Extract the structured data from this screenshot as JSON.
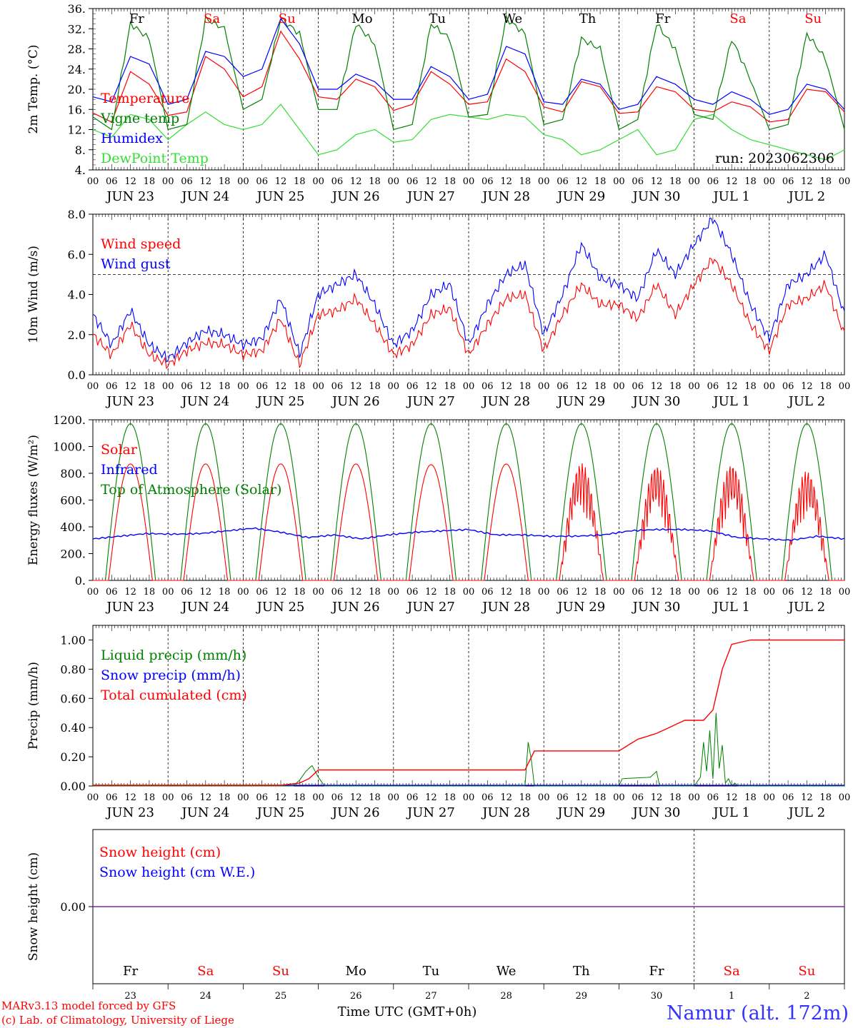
{
  "chart_data": [
    {
      "type": "line",
      "ylabel": "2m Temp. (°C)",
      "ylim": [
        4,
        36
      ],
      "yticks": [
        "4.",
        "8.",
        "12.",
        "16.",
        "20.",
        "24.",
        "28.",
        "32.",
        "36."
      ],
      "run_label": "run: 2023062306",
      "top_days": [
        "Fr",
        "Sa",
        "Su",
        "Mo",
        "Tu",
        "We",
        "Th",
        "Fr",
        "Sa",
        "Su"
      ],
      "legend": [
        {
          "name": "Temperature",
          "color": "#ff0000"
        },
        {
          "name": "Vigne temp",
          "color": "#008000"
        },
        {
          "name": "Humidex",
          "color": "#0000ff"
        },
        {
          "name": "DewPoint Temp",
          "color": "#33dd33"
        }
      ],
      "x_hours": [
        0,
        6,
        12,
        18,
        24,
        30,
        36,
        42,
        48,
        54,
        60,
        66,
        72,
        78,
        84,
        90,
        96,
        102,
        108,
        114,
        120,
        126,
        132,
        138,
        144,
        150,
        156,
        162,
        168,
        174,
        180,
        186,
        192,
        198,
        204,
        210,
        216,
        222,
        228,
        234,
        240
      ],
      "series": [
        {
          "name": "Temperature",
          "color": "#ff0000",
          "values": [
            15.3,
            13.5,
            23.5,
            21,
            14.8,
            15.5,
            26.5,
            24,
            18.5,
            20.5,
            31.5,
            26,
            18.5,
            18,
            22,
            20.5,
            15.8,
            17,
            23.5,
            21,
            17,
            17.5,
            26,
            23.5,
            16.5,
            15.5,
            21.5,
            20.5,
            15.2,
            15.5,
            20.5,
            19.5,
            16,
            15.5,
            17.5,
            16.5,
            13.5,
            14,
            20,
            19.5,
            15.5
          ]
        },
        {
          "name": "Vigne temp",
          "color": "#008000",
          "values": [
            14.5,
            12,
            33,
            30,
            12,
            13,
            34,
            32,
            16,
            18,
            34,
            31,
            16,
            16,
            33,
            29,
            12,
            13,
            33,
            30,
            14.5,
            15,
            34,
            31,
            13,
            14,
            30,
            28,
            12,
            14,
            33,
            28,
            15,
            14,
            30,
            22,
            12,
            13,
            31,
            26,
            12
          ]
        },
        {
          "name": "Humidex",
          "color": "#0000ff",
          "values": [
            18.5,
            17.5,
            26.5,
            25,
            17,
            18,
            27.5,
            26.5,
            22.5,
            24,
            34,
            29,
            20,
            20,
            23,
            21.5,
            18,
            18,
            24.5,
            22.5,
            18,
            19,
            28.5,
            27,
            17.5,
            17,
            22,
            21,
            16,
            17,
            22.5,
            21,
            18,
            17,
            19.5,
            18,
            15,
            16,
            21,
            20,
            16
          ]
        },
        {
          "name": "DewPoint Temp",
          "color": "#33dd33",
          "values": [
            12,
            10.5,
            15,
            14,
            10,
            13,
            15.5,
            13,
            12,
            13,
            17,
            12,
            7,
            8,
            11,
            12,
            9.5,
            10,
            14,
            15,
            14.5,
            14,
            15,
            14.5,
            11,
            10,
            7,
            8,
            10,
            12,
            7,
            8,
            14,
            15,
            12,
            10,
            9,
            8,
            7,
            6,
            8
          ]
        }
      ]
    },
    {
      "type": "line",
      "ylabel": "10m Wind (m/s)",
      "ylim": [
        0,
        8
      ],
      "yticks": [
        "0.0",
        "2.0",
        "4.0",
        "6.0",
        "8.0"
      ],
      "reference_line": 5,
      "legend": [
        {
          "name": "Wind speed",
          "color": "#ff0000"
        },
        {
          "name": "Wind gust",
          "color": "#0000ff"
        }
      ],
      "x_hours": [
        0,
        6,
        12,
        18,
        24,
        30,
        36,
        42,
        48,
        54,
        60,
        66,
        72,
        78,
        84,
        90,
        96,
        102,
        108,
        114,
        120,
        126,
        132,
        138,
        144,
        150,
        156,
        162,
        168,
        174,
        180,
        186,
        192,
        198,
        204,
        210,
        216,
        222,
        228,
        234,
        240
      ],
      "series": [
        {
          "name": "Wind speed",
          "color": "#ff0000",
          "values": [
            2.0,
            1.0,
            2.5,
            1.0,
            0.5,
            1.2,
            1.6,
            1.5,
            1.0,
            1.2,
            2.8,
            0.5,
            3.0,
            3.2,
            3.8,
            2.5,
            1.0,
            1.5,
            3.0,
            3.3,
            1.0,
            2.5,
            3.8,
            4.0,
            1.2,
            3.0,
            4.5,
            3.5,
            3.5,
            2.8,
            4.5,
            3.0,
            4.5,
            5.8,
            4.5,
            2.5,
            1.2,
            3.5,
            3.8,
            4.5,
            2.0
          ]
        },
        {
          "name": "Wind gust",
          "color": "#0000ff",
          "values": [
            3.0,
            1.5,
            3.2,
            1.5,
            0.8,
            1.6,
            2.2,
            2.0,
            1.5,
            1.8,
            3.8,
            1.0,
            4.0,
            4.5,
            5.0,
            3.5,
            1.5,
            2.2,
            4.0,
            4.5,
            1.5,
            3.5,
            5.0,
            5.5,
            2.0,
            4.0,
            6.5,
            4.8,
            4.5,
            3.8,
            6.2,
            5.0,
            6.5,
            7.8,
            6.0,
            3.5,
            1.8,
            4.5,
            5.0,
            6.0,
            3.0
          ]
        }
      ]
    },
    {
      "type": "line",
      "ylabel": "Energy fluxes (W/m²)",
      "ylim": [
        0,
        1200
      ],
      "yticks": [
        "0.",
        "200.",
        "400.",
        "600.",
        "800.",
        "1000.",
        "1200."
      ],
      "legend": [
        {
          "name": "Solar",
          "color": "#ff0000"
        },
        {
          "name": "Infrared",
          "color": "#0000ff"
        },
        {
          "name": "Top of Atmosphere (Solar)",
          "color": "#008000"
        }
      ],
      "solar_peaks": [
        870,
        870,
        870,
        870,
        865,
        870,
        880,
        860,
        870,
        820
      ],
      "toa_peak": 1170,
      "infrared_values": [
        310,
        330,
        350,
        345,
        350,
        370,
        390,
        360,
        320,
        340,
        310,
        340,
        360,
        370,
        380,
        340,
        340,
        330,
        330,
        340,
        370,
        380,
        380,
        370,
        320,
        310,
        300,
        330,
        310
      ]
    },
    {
      "type": "line",
      "ylabel": "Precip (mm/h)",
      "ylim": [
        0,
        1.1
      ],
      "yticks": [
        "0.00",
        "0.20",
        "0.40",
        "0.60",
        "0.80",
        "1.00"
      ],
      "legend": [
        {
          "name": "Liquid precip (mm/h)",
          "color": "#008000"
        },
        {
          "name": "Snow precip (mm/h)",
          "color": "#0000ff"
        },
        {
          "name": "Total cumulated (cm)",
          "color": "#ff0000"
        }
      ],
      "total_cumulated": {
        "x_hours": [
          0,
          60,
          66,
          69,
          72,
          90,
          138,
          141,
          144,
          168,
          174,
          180,
          189,
          192,
          195,
          198,
          201,
          204,
          210,
          216,
          240
        ],
        "values": [
          0.005,
          0.005,
          0.02,
          0.05,
          0.11,
          0.11,
          0.11,
          0.24,
          0.24,
          0.24,
          0.32,
          0.36,
          0.45,
          0.45,
          0.45,
          0.52,
          0.8,
          0.97,
          1.0,
          1.0,
          1.0
        ]
      },
      "liquid_precip": {
        "x_hours": [
          0,
          64,
          66,
          68,
          70,
          72,
          74,
          138,
          139,
          140,
          141,
          142,
          168,
          169,
          178,
          180,
          181,
          192,
          194,
          195,
          196,
          197,
          198,
          199,
          200,
          201,
          202,
          203,
          204,
          205,
          206,
          240
        ],
        "values": [
          0,
          0,
          0.04,
          0.1,
          0.14,
          0.06,
          0,
          0,
          0.3,
          0.18,
          0,
          0,
          0,
          0.05,
          0.06,
          0.1,
          0,
          0,
          0.06,
          0.3,
          0.1,
          0.38,
          0.05,
          0.5,
          0.12,
          0.28,
          0.02,
          0.05,
          0,
          0.02,
          0,
          0
        ]
      }
    },
    {
      "type": "line",
      "ylabel": "Snow height (cm)",
      "yticks": [
        "0.00"
      ],
      "legend": [
        {
          "name": "Snow height (cm)",
          "color": "#ff0000"
        },
        {
          "name": "Snow height (cm W.E.)",
          "color": "#0000ff"
        }
      ],
      "value": 0.0
    }
  ],
  "x_axis": {
    "hour_labels": [
      "00",
      "06",
      "12",
      "18"
    ],
    "end_label": "00",
    "dates": [
      "JUN 23",
      "JUN 24",
      "JUN 25",
      "JUN 26",
      "JUN 27",
      "JUN 28",
      "JUN 29",
      "JUN 30",
      "JUL  1",
      "JUL  2"
    ],
    "bottom_days": [
      "Fr",
      "Sa",
      "Su",
      "Mo",
      "Tu",
      "We",
      "Th",
      "Fr",
      "Sa",
      "Su"
    ],
    "bottom_dates": [
      "23",
      "24",
      "25",
      "26",
      "27",
      "28",
      "29",
      "30",
      "1",
      "2"
    ],
    "weekend_color": "#ff0000",
    "weekday_color": "#000000"
  },
  "footer": {
    "model_line": "MARv3.13 model forced by GFS",
    "credit_line": "(c) Lab. of Climatology, University of Liege",
    "time_label": "Time UTC (GMT+0h)",
    "station": "Namur (alt. 172m)"
  }
}
